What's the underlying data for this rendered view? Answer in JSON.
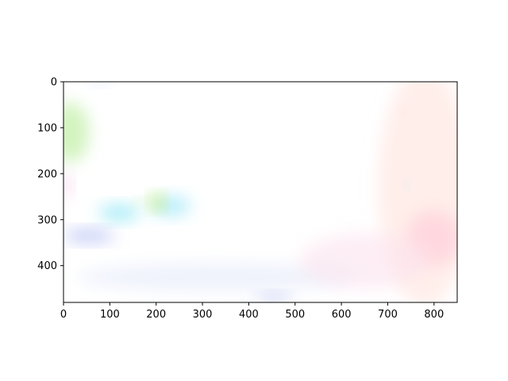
{
  "chart_data": {
    "type": "heatmap",
    "title": "",
    "xlabel": "",
    "ylabel": "",
    "xlim": [
      0,
      850
    ],
    "ylim": [
      480,
      0
    ],
    "y_inverted": true,
    "grid": false,
    "x_ticks": [
      0,
      100,
      200,
      300,
      400,
      500,
      600,
      700,
      800
    ],
    "y_ticks": [
      0,
      100,
      200,
      300,
      400
    ],
    "x_tick_labels": [
      "0",
      "100",
      "200",
      "300",
      "400",
      "500",
      "600",
      "700",
      "800"
    ],
    "y_tick_labels": [
      "0",
      "100",
      "200",
      "300",
      "400"
    ],
    "image_description": "near-white optical-flow style color image",
    "blobs": [
      {
        "cx": 15,
        "cy": 110,
        "rx": 40,
        "ry": 65,
        "color": "#cdf2b8",
        "opacity": 0.9
      },
      {
        "cx": 8,
        "cy": 225,
        "rx": 10,
        "ry": 25,
        "color": "#f2c6e6",
        "opacity": 0.7
      },
      {
        "cx": 120,
        "cy": 285,
        "rx": 45,
        "ry": 18,
        "color": "#a8ecf8",
        "opacity": 0.95
      },
      {
        "cx": 230,
        "cy": 270,
        "rx": 45,
        "ry": 22,
        "color": "#b3ecfa",
        "opacity": 0.9
      },
      {
        "cx": 202,
        "cy": 262,
        "rx": 14,
        "ry": 16,
        "color": "#c9ec5c",
        "opacity": 0.9
      },
      {
        "cx": 165,
        "cy": 262,
        "rx": 10,
        "ry": 8,
        "color": "#c8f3a6",
        "opacity": 0.8
      },
      {
        "cx": 55,
        "cy": 335,
        "rx": 55,
        "ry": 14,
        "color": "#c0c8f6",
        "opacity": 0.95
      },
      {
        "cx": 330,
        "cy": 425,
        "rx": 300,
        "ry": 30,
        "color": "#e8ecfb",
        "opacity": 0.7
      },
      {
        "cx": 455,
        "cy": 470,
        "rx": 40,
        "ry": 10,
        "color": "#c4cdf3",
        "opacity": 0.85
      },
      {
        "cx": 780,
        "cy": 230,
        "rx": 100,
        "ry": 260,
        "color": "#ffe8e3",
        "opacity": 0.75
      },
      {
        "cx": 800,
        "cy": 340,
        "rx": 60,
        "ry": 60,
        "color": "#ffd3dc",
        "opacity": 0.8
      },
      {
        "cx": 650,
        "cy": 390,
        "rx": 140,
        "ry": 60,
        "color": "#fbe2ef",
        "opacity": 0.6
      },
      {
        "cx": 730,
        "cy": 65,
        "rx": 5,
        "ry": 5,
        "color": "#f4b8a6",
        "opacity": 0.9
      },
      {
        "cx": 740,
        "cy": 225,
        "rx": 5,
        "ry": 8,
        "color": "#b6f2ee",
        "opacity": 0.9
      },
      {
        "cx": 75,
        "cy": 5,
        "rx": 20,
        "ry": 6,
        "color": "#d3dcfb",
        "opacity": 0.8
      }
    ]
  }
}
